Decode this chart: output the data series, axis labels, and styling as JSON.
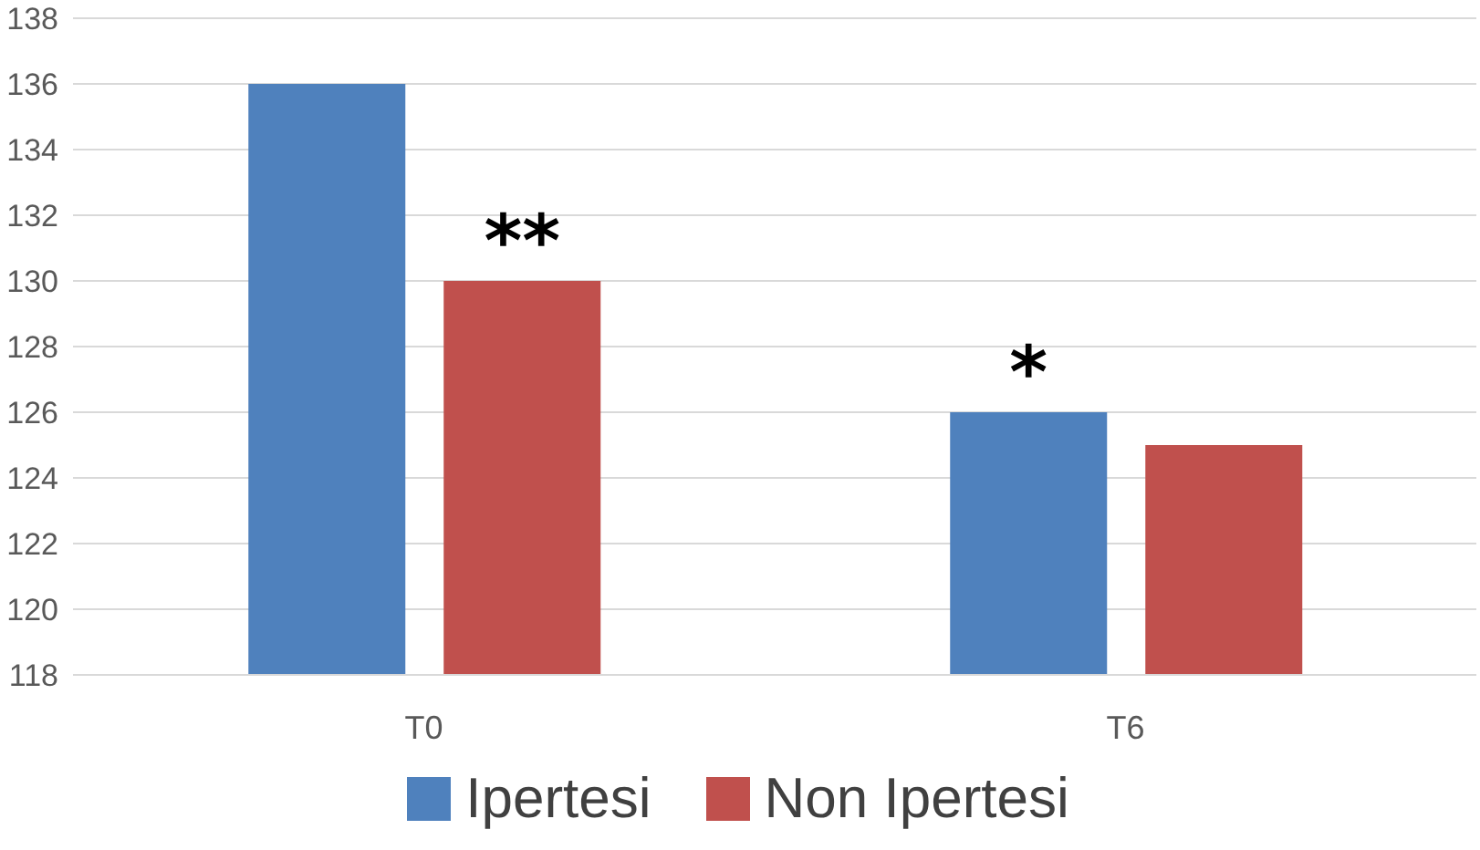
{
  "chart_data": {
    "type": "bar",
    "categories": [
      "T0",
      "T6"
    ],
    "series": [
      {
        "name": "Ipertesi",
        "color": "#4f81bd",
        "values": [
          136,
          126
        ]
      },
      {
        "name": "Non Ipertesi",
        "color": "#c0504d",
        "values": [
          130,
          125
        ]
      }
    ],
    "ylim": [
      118,
      138
    ],
    "yticks": [
      118,
      120,
      122,
      124,
      126,
      128,
      130,
      132,
      134,
      136,
      138
    ],
    "grid": "y",
    "legend": "bottom",
    "annotations": [
      "**",
      "*"
    ]
  }
}
